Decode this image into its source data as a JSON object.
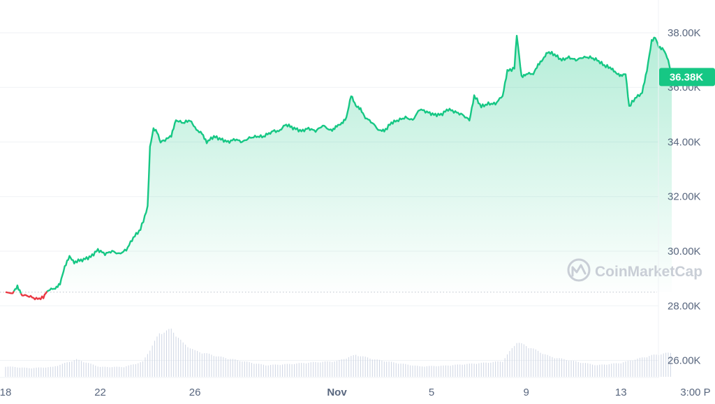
{
  "chart_data": {
    "type": "area",
    "ylim": [
      25400,
      39200
    ],
    "y_ticks": [
      {
        "value": 38000,
        "label": "38.00K"
      },
      {
        "value": 36000,
        "label": "36.00K"
      },
      {
        "value": 34000,
        "label": "34.00K"
      },
      {
        "value": 32000,
        "label": "32.00K"
      },
      {
        "value": 30000,
        "label": "30.00K"
      },
      {
        "value": 28000,
        "label": "28.00K"
      },
      {
        "value": 26000,
        "label": "26.00K"
      }
    ],
    "xlim": [
      0,
      27.35
    ],
    "x_ticks": [
      {
        "value": 0,
        "label": "18",
        "bold": false
      },
      {
        "value": 4,
        "label": "22",
        "bold": false
      },
      {
        "value": 8,
        "label": "26",
        "bold": false
      },
      {
        "value": 14,
        "label": "Nov",
        "bold": true
      },
      {
        "value": 18,
        "label": "5",
        "bold": false
      },
      {
        "value": 22,
        "label": "9",
        "bold": false
      },
      {
        "value": 26,
        "label": "13",
        "bold": false
      },
      {
        "value": 29.15,
        "label": "3:00 P",
        "bold": false
      }
    ],
    "baseline": 28500,
    "current_price": {
      "value": 36380,
      "label": "36.38K"
    },
    "colors": {
      "up": "#16c784",
      "down": "#ea3943",
      "grid": "#eff2f5",
      "volume": "#cfd6e4"
    },
    "series": [
      {
        "values": [
          [
            0,
            28500
          ],
          [
            0.3,
            28450
          ],
          [
            0.5,
            28700
          ],
          [
            0.7,
            28400
          ],
          [
            1.0,
            28350
          ],
          [
            1.3,
            28250
          ],
          [
            1.6,
            28300
          ],
          [
            1.75,
            28550
          ],
          [
            2.1,
            28650
          ],
          [
            2.3,
            28800
          ],
          [
            2.5,
            29400
          ],
          [
            2.7,
            29800
          ],
          [
            2.9,
            29600
          ],
          [
            3.3,
            29700
          ],
          [
            3.6,
            29800
          ],
          [
            3.9,
            30050
          ],
          [
            4.2,
            29900
          ],
          [
            4.5,
            30000
          ],
          [
            4.8,
            29900
          ],
          [
            5.1,
            30050
          ],
          [
            5.4,
            30500
          ],
          [
            5.7,
            30800
          ],
          [
            6.0,
            31600
          ],
          [
            6.1,
            33800
          ],
          [
            6.25,
            34500
          ],
          [
            6.4,
            34400
          ],
          [
            6.55,
            34000
          ],
          [
            6.8,
            34100
          ],
          [
            7.0,
            34200
          ],
          [
            7.2,
            34800
          ],
          [
            7.5,
            34700
          ],
          [
            7.8,
            34800
          ],
          [
            8.0,
            34500
          ],
          [
            8.3,
            34300
          ],
          [
            8.5,
            34000
          ],
          [
            8.8,
            34200
          ],
          [
            9.1,
            34100
          ],
          [
            9.4,
            34000
          ],
          [
            9.7,
            34100
          ],
          [
            10.0,
            34000
          ],
          [
            10.3,
            34150
          ],
          [
            10.6,
            34200
          ],
          [
            10.9,
            34200
          ],
          [
            11.3,
            34400
          ],
          [
            11.6,
            34400
          ],
          [
            11.8,
            34650
          ],
          [
            12.2,
            34500
          ],
          [
            12.5,
            34400
          ],
          [
            12.8,
            34500
          ],
          [
            13.1,
            34400
          ],
          [
            13.4,
            34600
          ],
          [
            13.8,
            34400
          ],
          [
            14.0,
            34600
          ],
          [
            14.2,
            34700
          ],
          [
            14.4,
            34900
          ],
          [
            14.6,
            35700
          ],
          [
            14.8,
            35300
          ],
          [
            15.0,
            35200
          ],
          [
            15.2,
            34900
          ],
          [
            15.5,
            34700
          ],
          [
            15.8,
            34400
          ],
          [
            16.0,
            34400
          ],
          [
            16.3,
            34700
          ],
          [
            16.6,
            34800
          ],
          [
            16.9,
            34900
          ],
          [
            17.2,
            34800
          ],
          [
            17.5,
            35200
          ],
          [
            17.8,
            35100
          ],
          [
            18.1,
            35000
          ],
          [
            18.4,
            35000
          ],
          [
            18.7,
            35200
          ],
          [
            19.0,
            35100
          ],
          [
            19.3,
            35000
          ],
          [
            19.6,
            34800
          ],
          [
            19.8,
            35700
          ],
          [
            20.1,
            35300
          ],
          [
            20.4,
            35400
          ],
          [
            20.7,
            35400
          ],
          [
            21.0,
            35700
          ],
          [
            21.2,
            36600
          ],
          [
            21.5,
            36700
          ],
          [
            21.6,
            37900
          ],
          [
            21.8,
            36400
          ],
          [
            22.0,
            36500
          ],
          [
            22.3,
            36500
          ],
          [
            22.5,
            36800
          ],
          [
            22.7,
            37000
          ],
          [
            22.9,
            37300
          ],
          [
            23.2,
            37200
          ],
          [
            23.5,
            37000
          ],
          [
            23.8,
            37100
          ],
          [
            24.1,
            37000
          ],
          [
            24.4,
            37100
          ],
          [
            24.7,
            37100
          ],
          [
            25.0,
            37000
          ],
          [
            25.3,
            36800
          ],
          [
            25.6,
            36700
          ],
          [
            25.8,
            36500
          ],
          [
            26.0,
            36400
          ],
          [
            26.2,
            36500
          ],
          [
            26.35,
            35300
          ],
          [
            26.6,
            35600
          ],
          [
            26.9,
            35800
          ],
          [
            27.1,
            36600
          ],
          [
            27.3,
            37700
          ],
          [
            27.45,
            37850
          ],
          [
            27.6,
            37500
          ],
          [
            27.8,
            37400
          ],
          [
            28.0,
            37000
          ],
          [
            28.15,
            36380
          ]
        ]
      }
    ],
    "volume": {
      "ylim": [
        0,
        100
      ],
      "values": [
        [
          0,
          18
        ],
        [
          1,
          15
        ],
        [
          2,
          17
        ],
        [
          3,
          30
        ],
        [
          4,
          17
        ],
        [
          5,
          17
        ],
        [
          5.8,
          26
        ],
        [
          6.5,
          75
        ],
        [
          7.0,
          82
        ],
        [
          7.5,
          58
        ],
        [
          8.0,
          45
        ],
        [
          9.0,
          35
        ],
        [
          10.0,
          27
        ],
        [
          11.0,
          20
        ],
        [
          12.0,
          22
        ],
        [
          13.0,
          25
        ],
        [
          14.0,
          27
        ],
        [
          14.8,
          38
        ],
        [
          15.6,
          30
        ],
        [
          16.5,
          24
        ],
        [
          17.5,
          18
        ],
        [
          18.5,
          19
        ],
        [
          19.5,
          22
        ],
        [
          20.5,
          25
        ],
        [
          21.0,
          27
        ],
        [
          21.6,
          60
        ],
        [
          22.2,
          50
        ],
        [
          23.0,
          35
        ],
        [
          24.0,
          27
        ],
        [
          25.0,
          20
        ],
        [
          26.0,
          24
        ],
        [
          26.8,
          32
        ],
        [
          27.3,
          37
        ],
        [
          28.15,
          42
        ]
      ]
    }
  },
  "watermark": {
    "text": "CoinMarketCap"
  }
}
